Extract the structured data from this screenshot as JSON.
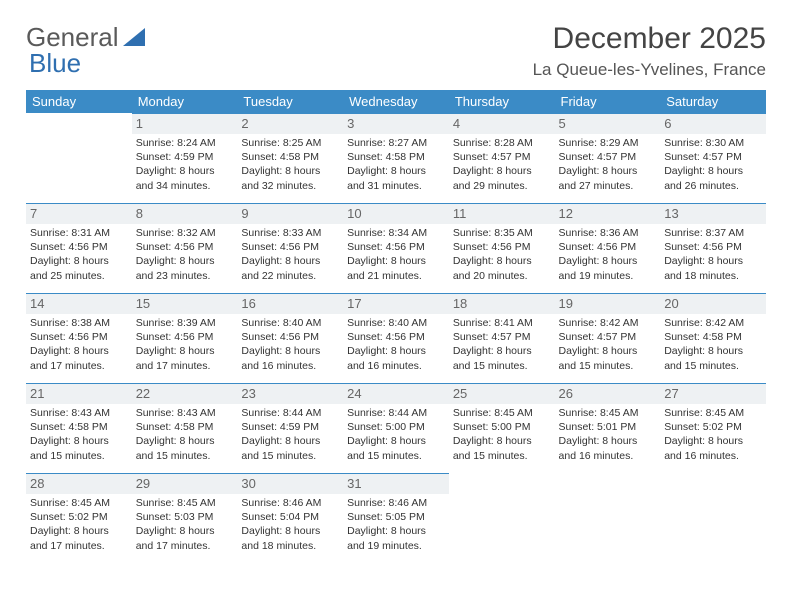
{
  "logo": {
    "text1": "General",
    "text2": "Blue"
  },
  "title": "December 2025",
  "location": "La Queue-les-Yvelines, France",
  "colors": {
    "headerBg": "#3b8bc6",
    "headerText": "#ffffff",
    "dayBg": "#eef1f3",
    "borderTop": "#3b8bc6",
    "logoGray": "#5a5a5a",
    "logoBlue": "#2f6fb0"
  },
  "weekdays": [
    "Sunday",
    "Monday",
    "Tuesday",
    "Wednesday",
    "Thursday",
    "Friday",
    "Saturday"
  ],
  "layout": {
    "startOffset": 1,
    "daysInMonth": 31
  },
  "days": {
    "1": {
      "sunrise": "8:24 AM",
      "sunset": "4:59 PM",
      "daylight": "8 hours and 34 minutes."
    },
    "2": {
      "sunrise": "8:25 AM",
      "sunset": "4:58 PM",
      "daylight": "8 hours and 32 minutes."
    },
    "3": {
      "sunrise": "8:27 AM",
      "sunset": "4:58 PM",
      "daylight": "8 hours and 31 minutes."
    },
    "4": {
      "sunrise": "8:28 AM",
      "sunset": "4:57 PM",
      "daylight": "8 hours and 29 minutes."
    },
    "5": {
      "sunrise": "8:29 AM",
      "sunset": "4:57 PM",
      "daylight": "8 hours and 27 minutes."
    },
    "6": {
      "sunrise": "8:30 AM",
      "sunset": "4:57 PM",
      "daylight": "8 hours and 26 minutes."
    },
    "7": {
      "sunrise": "8:31 AM",
      "sunset": "4:56 PM",
      "daylight": "8 hours and 25 minutes."
    },
    "8": {
      "sunrise": "8:32 AM",
      "sunset": "4:56 PM",
      "daylight": "8 hours and 23 minutes."
    },
    "9": {
      "sunrise": "8:33 AM",
      "sunset": "4:56 PM",
      "daylight": "8 hours and 22 minutes."
    },
    "10": {
      "sunrise": "8:34 AM",
      "sunset": "4:56 PM",
      "daylight": "8 hours and 21 minutes."
    },
    "11": {
      "sunrise": "8:35 AM",
      "sunset": "4:56 PM",
      "daylight": "8 hours and 20 minutes."
    },
    "12": {
      "sunrise": "8:36 AM",
      "sunset": "4:56 PM",
      "daylight": "8 hours and 19 minutes."
    },
    "13": {
      "sunrise": "8:37 AM",
      "sunset": "4:56 PM",
      "daylight": "8 hours and 18 minutes."
    },
    "14": {
      "sunrise": "8:38 AM",
      "sunset": "4:56 PM",
      "daylight": "8 hours and 17 minutes."
    },
    "15": {
      "sunrise": "8:39 AM",
      "sunset": "4:56 PM",
      "daylight": "8 hours and 17 minutes."
    },
    "16": {
      "sunrise": "8:40 AM",
      "sunset": "4:56 PM",
      "daylight": "8 hours and 16 minutes."
    },
    "17": {
      "sunrise": "8:40 AM",
      "sunset": "4:56 PM",
      "daylight": "8 hours and 16 minutes."
    },
    "18": {
      "sunrise": "8:41 AM",
      "sunset": "4:57 PM",
      "daylight": "8 hours and 15 minutes."
    },
    "19": {
      "sunrise": "8:42 AM",
      "sunset": "4:57 PM",
      "daylight": "8 hours and 15 minutes."
    },
    "20": {
      "sunrise": "8:42 AM",
      "sunset": "4:58 PM",
      "daylight": "8 hours and 15 minutes."
    },
    "21": {
      "sunrise": "8:43 AM",
      "sunset": "4:58 PM",
      "daylight": "8 hours and 15 minutes."
    },
    "22": {
      "sunrise": "8:43 AM",
      "sunset": "4:58 PM",
      "daylight": "8 hours and 15 minutes."
    },
    "23": {
      "sunrise": "8:44 AM",
      "sunset": "4:59 PM",
      "daylight": "8 hours and 15 minutes."
    },
    "24": {
      "sunrise": "8:44 AM",
      "sunset": "5:00 PM",
      "daylight": "8 hours and 15 minutes."
    },
    "25": {
      "sunrise": "8:45 AM",
      "sunset": "5:00 PM",
      "daylight": "8 hours and 15 minutes."
    },
    "26": {
      "sunrise": "8:45 AM",
      "sunset": "5:01 PM",
      "daylight": "8 hours and 16 minutes."
    },
    "27": {
      "sunrise": "8:45 AM",
      "sunset": "5:02 PM",
      "daylight": "8 hours and 16 minutes."
    },
    "28": {
      "sunrise": "8:45 AM",
      "sunset": "5:02 PM",
      "daylight": "8 hours and 17 minutes."
    },
    "29": {
      "sunrise": "8:45 AM",
      "sunset": "5:03 PM",
      "daylight": "8 hours and 17 minutes."
    },
    "30": {
      "sunrise": "8:46 AM",
      "sunset": "5:04 PM",
      "daylight": "8 hours and 18 minutes."
    },
    "31": {
      "sunrise": "8:46 AM",
      "sunset": "5:05 PM",
      "daylight": "8 hours and 19 minutes."
    }
  },
  "labels": {
    "sunrise": "Sunrise: ",
    "sunset": "Sunset: ",
    "daylight": "Daylight: "
  }
}
